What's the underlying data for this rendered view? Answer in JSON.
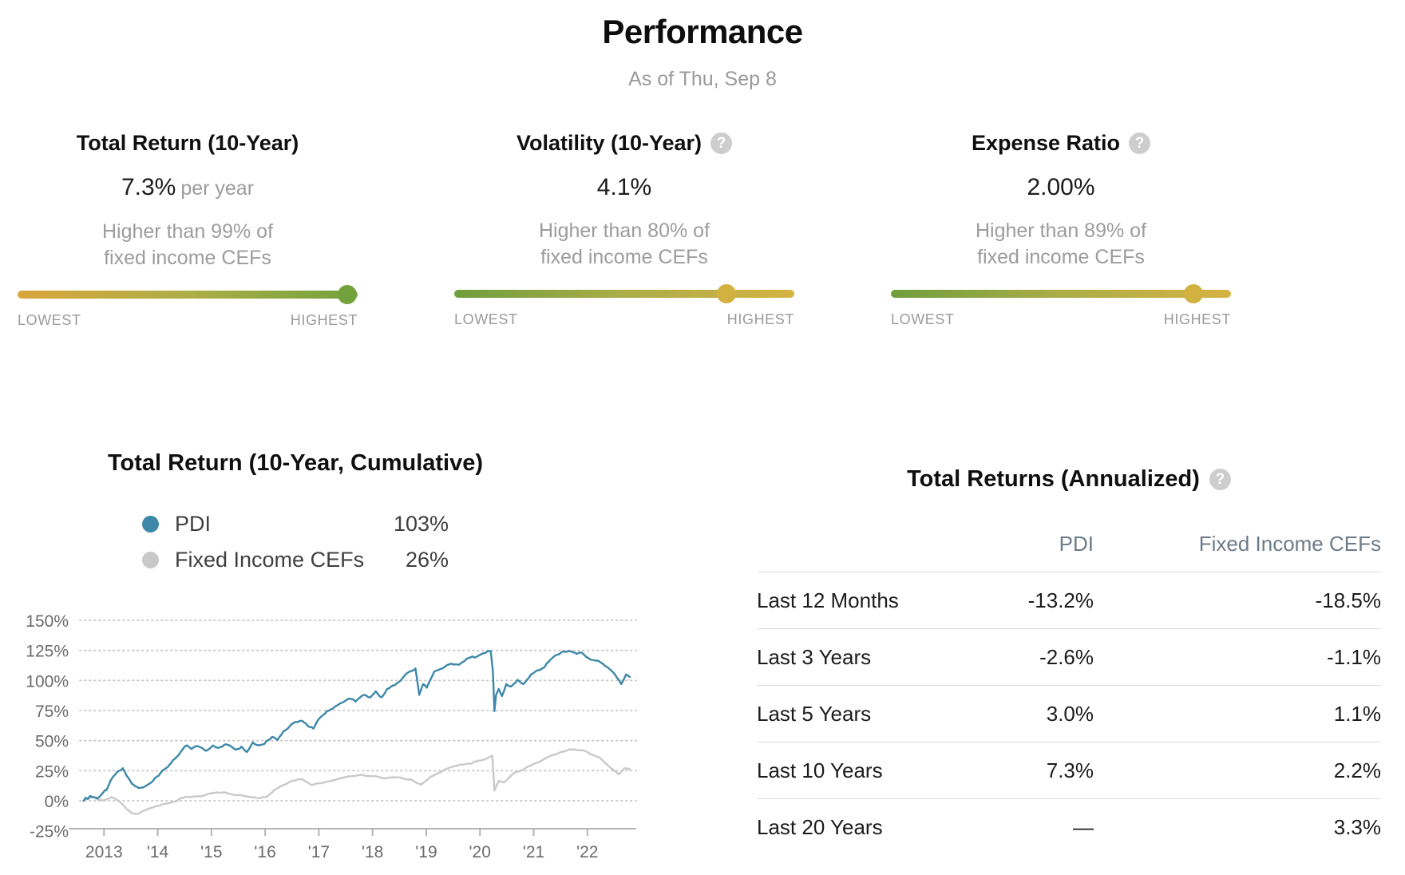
{
  "header": {
    "title": "Performance",
    "as_of": "As of Thu, Sep 8"
  },
  "help_glyph": "?",
  "metrics": [
    {
      "title": "Total Return (10-Year)",
      "help_icon": false,
      "value": "7.3%",
      "value_suffix": "per year",
      "desc": [
        "Higher than 99% of",
        "fixed income CEFs"
      ],
      "low_label": "LOWEST",
      "high_label": "HIGHEST",
      "marker_position_pct": 97,
      "track_gradient": [
        "#d8a63c",
        "#aeae46",
        "#73a23d"
      ],
      "marker_color": "#73a23d"
    },
    {
      "title": "Volatility (10-Year)",
      "help_icon": true,
      "value": "4.1%",
      "value_suffix": "",
      "desc": [
        "Higher than 80% of",
        "fixed income CEFs"
      ],
      "low_label": "LOWEST",
      "high_label": "HIGHEST",
      "marker_position_pct": 80,
      "track_gradient": [
        "#6f9e3a",
        "#abad48",
        "#d4b342"
      ],
      "marker_color": "#d2b141"
    },
    {
      "title": "Expense Ratio",
      "help_icon": true,
      "value": "2.00%",
      "value_suffix": "",
      "desc": [
        "Higher than 89% of",
        "fixed income CEFs"
      ],
      "low_label": "LOWEST",
      "high_label": "HIGHEST",
      "marker_position_pct": 89,
      "track_gradient": [
        "#6f9e3a",
        "#abad48",
        "#d4b342"
      ],
      "marker_color": "#d2b141"
    }
  ],
  "chart_data": [
    {
      "type": "line",
      "title": "Total Return (10-Year, Cumulative)",
      "xlabel": "",
      "ylabel": "",
      "x_range": [
        2012.55,
        2022.85
      ],
      "ylim": [
        -25,
        150
      ],
      "grid": "dotted-horizontal",
      "legend_position": "above-chart",
      "ytick_labels": [
        "150%",
        "125%",
        "100%",
        "75%",
        "50%",
        "25%",
        "0%",
        "-25%"
      ],
      "ytick_values": [
        150,
        125,
        100,
        75,
        50,
        25,
        0,
        -25
      ],
      "grid_values": [
        150,
        125,
        100,
        75,
        50,
        25,
        0
      ],
      "xtick_labels": [
        "2013",
        "'14",
        "'15",
        "'16",
        "'17",
        "'18",
        "'19",
        "'20",
        "'21",
        "'22"
      ],
      "xtick_years": [
        2013,
        2014,
        2015,
        2016,
        2017,
        2018,
        2019,
        2020,
        2021,
        2022
      ],
      "series": [
        {
          "name": "PDI",
          "color": "#3d87a8",
          "end_label": "103%",
          "points": [
            [
              2012.62,
              0
            ],
            [
              2012.66,
              2.5
            ],
            [
              2012.7,
              1.5
            ],
            [
              2012.74,
              4
            ],
            [
              2012.82,
              3
            ],
            [
              2012.88,
              2
            ],
            [
              2012.95,
              5
            ],
            [
              2013.05,
              9
            ],
            [
              2013.17,
              20
            ],
            [
              2013.28,
              25
            ],
            [
              2013.35,
              27
            ],
            [
              2013.42,
              21
            ],
            [
              2013.47,
              18
            ],
            [
              2013.52,
              14
            ],
            [
              2013.58,
              12
            ],
            [
              2013.65,
              10.5
            ],
            [
              2013.73,
              11
            ],
            [
              2013.84,
              14
            ],
            [
              2013.95,
              19
            ],
            [
              2014.02,
              21
            ],
            [
              2014.12,
              26
            ],
            [
              2014.22,
              30
            ],
            [
              2014.32,
              35
            ],
            [
              2014.42,
              40
            ],
            [
              2014.54,
              46
            ],
            [
              2014.63,
              43
            ],
            [
              2014.72,
              45.5
            ],
            [
              2014.82,
              44
            ],
            [
              2014.9,
              41.5
            ],
            [
              2015.03,
              46
            ],
            [
              2015.12,
              44
            ],
            [
              2015.2,
              45
            ],
            [
              2015.27,
              47
            ],
            [
              2015.34,
              46
            ],
            [
              2015.45,
              42.5
            ],
            [
              2015.56,
              45
            ],
            [
              2015.66,
              40.5
            ],
            [
              2015.77,
              48.5
            ],
            [
              2015.88,
              46
            ],
            [
              2016.02,
              49.5
            ],
            [
              2016.13,
              53
            ],
            [
              2016.23,
              50.5
            ],
            [
              2016.37,
              58.5
            ],
            [
              2016.46,
              62
            ],
            [
              2016.56,
              65.5
            ],
            [
              2016.69,
              66.5
            ],
            [
              2016.8,
              62
            ],
            [
              2016.9,
              60
            ],
            [
              2017.0,
              68
            ],
            [
              2017.15,
              74.5
            ],
            [
              2017.29,
              78
            ],
            [
              2017.43,
              81.5
            ],
            [
              2017.57,
              85
            ],
            [
              2017.68,
              82.5
            ],
            [
              2017.85,
              88
            ],
            [
              2017.96,
              86
            ],
            [
              2018.06,
              91
            ],
            [
              2018.17,
              86
            ],
            [
              2018.27,
              93
            ],
            [
              2018.41,
              96
            ],
            [
              2018.56,
              102
            ],
            [
              2018.7,
              107.5
            ],
            [
              2018.8,
              110
            ],
            [
              2018.87,
              88
            ],
            [
              2018.94,
              97
            ],
            [
              2019.01,
              94
            ],
            [
              2019.15,
              107.5
            ],
            [
              2019.3,
              110
            ],
            [
              2019.47,
              114
            ],
            [
              2019.61,
              113
            ],
            [
              2019.75,
              118
            ],
            [
              2019.9,
              119
            ],
            [
              2020.03,
              122
            ],
            [
              2020.13,
              124
            ],
            [
              2020.2,
              124.5
            ],
            [
              2020.24,
              108
            ],
            [
              2020.27,
              74.5
            ],
            [
              2020.3,
              88
            ],
            [
              2020.35,
              93
            ],
            [
              2020.41,
              87
            ],
            [
              2020.49,
              97
            ],
            [
              2020.58,
              95
            ],
            [
              2020.7,
              100.5
            ],
            [
              2020.81,
              97
            ],
            [
              2020.95,
              105
            ],
            [
              2021.1,
              108.5
            ],
            [
              2021.24,
              114
            ],
            [
              2021.38,
              120
            ],
            [
              2021.52,
              123.5
            ],
            [
              2021.66,
              124.5
            ],
            [
              2021.8,
              122
            ],
            [
              2021.9,
              123
            ],
            [
              2022.05,
              117.5
            ],
            [
              2022.19,
              116.5
            ],
            [
              2022.33,
              112
            ],
            [
              2022.44,
              108.5
            ],
            [
              2022.54,
              103
            ],
            [
              2022.63,
              97
            ],
            [
              2022.72,
              105
            ],
            [
              2022.79,
              103
            ]
          ]
        },
        {
          "name": "Fixed Income CEFs",
          "color": "#c9c9c9",
          "end_label": "26%",
          "points": [
            [
              2012.62,
              0
            ],
            [
              2012.72,
              2
            ],
            [
              2012.8,
              3
            ],
            [
              2012.9,
              1
            ],
            [
              2013.0,
              0.5
            ],
            [
              2013.14,
              3
            ],
            [
              2013.28,
              -0.5
            ],
            [
              2013.42,
              -7
            ],
            [
              2013.53,
              -10.5
            ],
            [
              2013.67,
              -10
            ],
            [
              2013.81,
              -7
            ],
            [
              2013.98,
              -4.5
            ],
            [
              2014.2,
              -2
            ],
            [
              2014.4,
              1.5
            ],
            [
              2014.6,
              3
            ],
            [
              2014.83,
              4
            ],
            [
              2015.03,
              6.5
            ],
            [
              2015.25,
              7
            ],
            [
              2015.42,
              5
            ],
            [
              2015.6,
              4
            ],
            [
              2015.74,
              3
            ],
            [
              2015.88,
              2
            ],
            [
              2016.02,
              3
            ],
            [
              2016.16,
              8.5
            ],
            [
              2016.34,
              13
            ],
            [
              2016.51,
              16.5
            ],
            [
              2016.69,
              18
            ],
            [
              2016.87,
              13
            ],
            [
              2017.0,
              14.5
            ],
            [
              2017.22,
              16.5
            ],
            [
              2017.43,
              19
            ],
            [
              2017.64,
              20.5
            ],
            [
              2017.85,
              21
            ],
            [
              2018.06,
              20.5
            ],
            [
              2018.27,
              19
            ],
            [
              2018.48,
              19.5
            ],
            [
              2018.7,
              18
            ],
            [
              2018.84,
              14.5
            ],
            [
              2018.91,
              13.5
            ],
            [
              2019.08,
              20
            ],
            [
              2019.26,
              23.5
            ],
            [
              2019.47,
              28
            ],
            [
              2019.68,
              30
            ],
            [
              2019.9,
              32.5
            ],
            [
              2020.1,
              34.5
            ],
            [
              2020.23,
              37.5
            ],
            [
              2020.27,
              8.5
            ],
            [
              2020.35,
              16.5
            ],
            [
              2020.46,
              15.5
            ],
            [
              2020.63,
              23
            ],
            [
              2020.84,
              27
            ],
            [
              2021.06,
              31.5
            ],
            [
              2021.27,
              36.5
            ],
            [
              2021.48,
              40
            ],
            [
              2021.7,
              42.5
            ],
            [
              2021.91,
              42
            ],
            [
              2022.05,
              39
            ],
            [
              2022.26,
              34.5
            ],
            [
              2022.44,
              27
            ],
            [
              2022.58,
              22
            ],
            [
              2022.69,
              27
            ],
            [
              2022.79,
              26
            ]
          ]
        }
      ]
    },
    {
      "type": "table",
      "title": "Total Returns (Annualized)",
      "columns": [
        "",
        "PDI",
        "Fixed Income CEFs"
      ],
      "rows": [
        [
          "Last 12 Months",
          "-13.2%",
          "-18.5%"
        ],
        [
          "Last 3 Years",
          "-2.6%",
          "-1.1%"
        ],
        [
          "Last 5 Years",
          "3.0%",
          "1.1%"
        ],
        [
          "Last 10 Years",
          "7.3%",
          "2.2%"
        ],
        [
          "Last 20 Years",
          "—",
          "3.3%"
        ]
      ]
    }
  ]
}
